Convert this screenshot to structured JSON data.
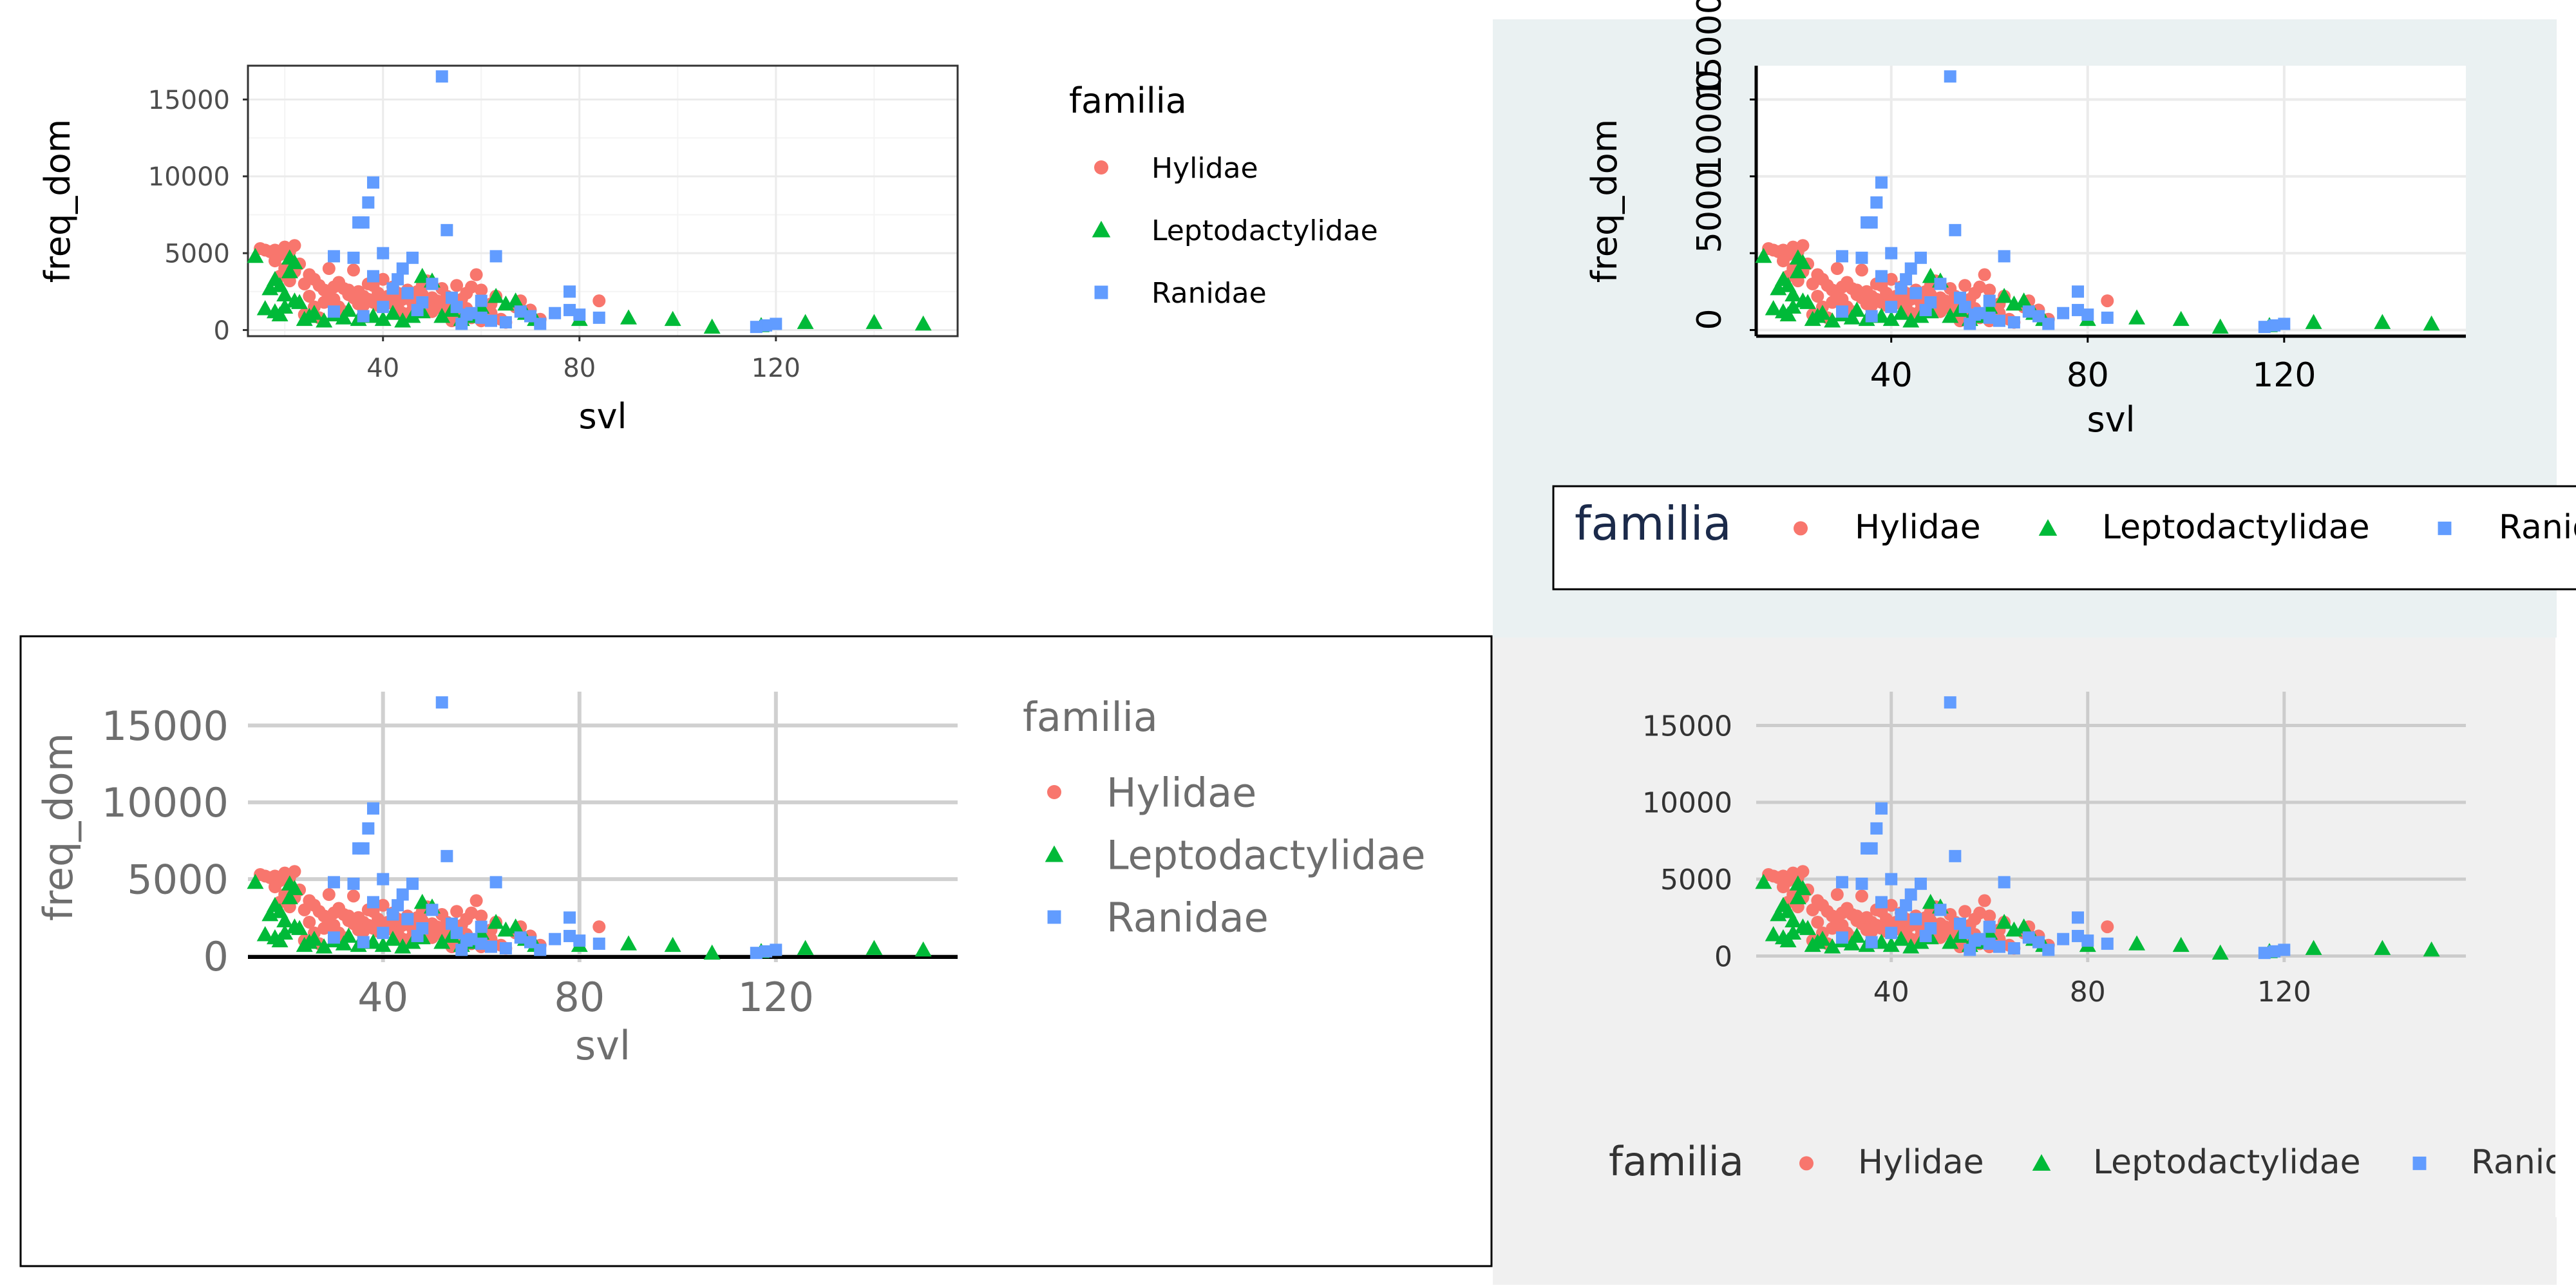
{
  "colors": {
    "Hylidae": "#F8766D",
    "Leptodactylidae": "#00BA38",
    "Ranidae": "#619CFF",
    "panel_bg_tr": "#EAF1F2",
    "panel_bg_br": "#F0F0F0",
    "grid": "#EBEBEB",
    "grid_dark": "#CCCCCC"
  },
  "panels": [
    {
      "id": "tl",
      "style": "theme_bw",
      "legend_position": "right"
    },
    {
      "id": "tr",
      "style": "custom_rotated_y",
      "legend_position": "bottom"
    },
    {
      "id": "bl",
      "style": "theme_minimal_big",
      "legend_position": "right"
    },
    {
      "id": "br",
      "style": "theme_gray_light",
      "legend_position": "bottom"
    }
  ],
  "chart_data": {
    "type": "scatter",
    "xlabel": "svl",
    "ylabel": "freq_dom",
    "legend_title": "familia",
    "x_ticks": [
      40,
      80,
      120
    ],
    "y_ticks": [
      0,
      5000,
      10000,
      15000
    ],
    "xlim": [
      12.5,
      157
    ],
    "ylim": [
      -400,
      17200
    ],
    "series": [
      {
        "name": "Hylidae",
        "shape": "circle",
        "points": [
          [
            15,
            5300
          ],
          [
            16,
            5200
          ],
          [
            17,
            5100
          ],
          [
            18,
            5200
          ],
          [
            19,
            4900
          ],
          [
            20,
            5400
          ],
          [
            21,
            5100
          ],
          [
            22,
            5500
          ],
          [
            18,
            4500
          ],
          [
            20,
            4000
          ],
          [
            22,
            3800
          ],
          [
            19,
            3500
          ],
          [
            21,
            3200
          ],
          [
            23,
            4300
          ],
          [
            24,
            3000
          ],
          [
            25,
            3600
          ],
          [
            26,
            3300
          ],
          [
            27,
            2900
          ],
          [
            28,
            2600
          ],
          [
            29,
            2400
          ],
          [
            30,
            2800
          ],
          [
            31,
            3100
          ],
          [
            32,
            2700
          ],
          [
            33,
            2300
          ],
          [
            34,
            2100
          ],
          [
            35,
            2500
          ],
          [
            36,
            2200
          ],
          [
            37,
            2000
          ],
          [
            38,
            1800
          ],
          [
            39,
            2400
          ],
          [
            40,
            1900
          ],
          [
            41,
            2200
          ],
          [
            42,
            1700
          ],
          [
            43,
            1500
          ],
          [
            44,
            2000
          ],
          [
            45,
            2600
          ],
          [
            46,
            1800
          ],
          [
            47,
            1400
          ],
          [
            48,
            2300
          ],
          [
            49,
            1600
          ],
          [
            50,
            1200
          ],
          [
            51,
            1900
          ],
          [
            52,
            2700
          ],
          [
            53,
            2200
          ],
          [
            54,
            1700
          ],
          [
            55,
            1000
          ],
          [
            56,
            900
          ],
          [
            57,
            1400
          ],
          [
            58,
            800
          ],
          [
            59,
            3600
          ],
          [
            60,
            2600
          ],
          [
            61,
            1200
          ],
          [
            62,
            1700
          ],
          [
            63,
            2200
          ],
          [
            64,
            700
          ],
          [
            65,
            500
          ],
          [
            67,
            1500
          ],
          [
            68,
            1900
          ],
          [
            70,
            1300
          ],
          [
            72,
            700
          ],
          [
            84,
            1900
          ],
          [
            24,
            1000
          ],
          [
            26,
            1500
          ],
          [
            28,
            1800
          ],
          [
            30,
            2000
          ],
          [
            32,
            1200
          ],
          [
            34,
            3900
          ],
          [
            36,
            1600
          ],
          [
            38,
            2900
          ],
          [
            40,
            3300
          ],
          [
            44,
            1100
          ],
          [
            46,
            1300
          ],
          [
            48,
            2900
          ],
          [
            50,
            2100
          ],
          [
            52,
            1400
          ],
          [
            54,
            600
          ],
          [
            56,
            2000
          ],
          [
            58,
            2800
          ],
          [
            60,
            600
          ],
          [
            62,
            1100
          ],
          [
            29,
            4000
          ],
          [
            31,
            1500
          ],
          [
            33,
            2600
          ],
          [
            35,
            1700
          ],
          [
            37,
            3000
          ],
          [
            39,
            1600
          ],
          [
            41,
            1900
          ],
          [
            43,
            2400
          ],
          [
            45,
            1000
          ],
          [
            47,
            2500
          ],
          [
            49,
            3200
          ],
          [
            53,
            1600
          ],
          [
            57,
            2400
          ],
          [
            30,
            1800
          ],
          [
            25,
            2200
          ],
          [
            27,
            800
          ],
          [
            42,
            2800
          ],
          [
            55,
            2900
          ]
        ]
      },
      {
        "name": "Leptodactylidae",
        "shape": "triangle",
        "points": [
          [
            14,
            4800
          ],
          [
            16,
            1400
          ],
          [
            17,
            2700
          ],
          [
            18,
            1200
          ],
          [
            19,
            2900
          ],
          [
            20,
            1500
          ],
          [
            21,
            3800
          ],
          [
            22,
            4400
          ],
          [
            23,
            1800
          ],
          [
            24,
            700
          ],
          [
            25,
            900
          ],
          [
            26,
            1100
          ],
          [
            28,
            600
          ],
          [
            30,
            1000
          ],
          [
            32,
            800
          ],
          [
            35,
            700
          ],
          [
            38,
            900
          ],
          [
            40,
            700
          ],
          [
            42,
            1100
          ],
          [
            44,
            600
          ],
          [
            46,
            900
          ],
          [
            48,
            1200
          ],
          [
            50,
            3200
          ],
          [
            52,
            900
          ],
          [
            54,
            1300
          ],
          [
            56,
            700
          ],
          [
            60,
            1500
          ],
          [
            63,
            2200
          ],
          [
            65,
            1700
          ],
          [
            67,
            1900
          ],
          [
            69,
            1100
          ],
          [
            71,
            700
          ],
          [
            80,
            700
          ],
          [
            90,
            800
          ],
          [
            99,
            700
          ],
          [
            107,
            200
          ],
          [
            117,
            300
          ],
          [
            126,
            500
          ],
          [
            140,
            500
          ],
          [
            150,
            400
          ],
          [
            18,
            3300
          ],
          [
            20,
            2300
          ],
          [
            22,
            1900
          ],
          [
            19,
            1000
          ],
          [
            21,
            4700
          ],
          [
            33,
            1300
          ],
          [
            48,
            3500
          ],
          [
            58,
            900
          ]
        ]
      },
      {
        "name": "Ranidae",
        "shape": "square",
        "points": [
          [
            52,
            16500
          ],
          [
            38,
            9600
          ],
          [
            37,
            8300
          ],
          [
            36,
            7000
          ],
          [
            35,
            7000
          ],
          [
            53,
            6500
          ],
          [
            63,
            4800
          ],
          [
            30,
            4800
          ],
          [
            40,
            5000
          ],
          [
            34,
            4700
          ],
          [
            46,
            4700
          ],
          [
            44,
            4000
          ],
          [
            50,
            3000
          ],
          [
            38,
            3500
          ],
          [
            42,
            2700
          ],
          [
            45,
            2400
          ],
          [
            48,
            1800
          ],
          [
            55,
            1500
          ],
          [
            57,
            1000
          ],
          [
            60,
            800
          ],
          [
            62,
            600
          ],
          [
            65,
            500
          ],
          [
            68,
            1200
          ],
          [
            72,
            400
          ],
          [
            78,
            2500
          ],
          [
            78,
            1300
          ],
          [
            80,
            1000
          ],
          [
            84,
            800
          ],
          [
            75,
            1100
          ],
          [
            118,
            300
          ],
          [
            120,
            400
          ],
          [
            116,
            200
          ],
          [
            54,
            2100
          ],
          [
            47,
            1300
          ],
          [
            36,
            900
          ],
          [
            40,
            1500
          ],
          [
            56,
            400
          ],
          [
            70,
            900
          ],
          [
            30,
            1200
          ],
          [
            60,
            1900
          ],
          [
            43,
            3300
          ],
          [
            58,
            1100
          ]
        ]
      }
    ]
  }
}
